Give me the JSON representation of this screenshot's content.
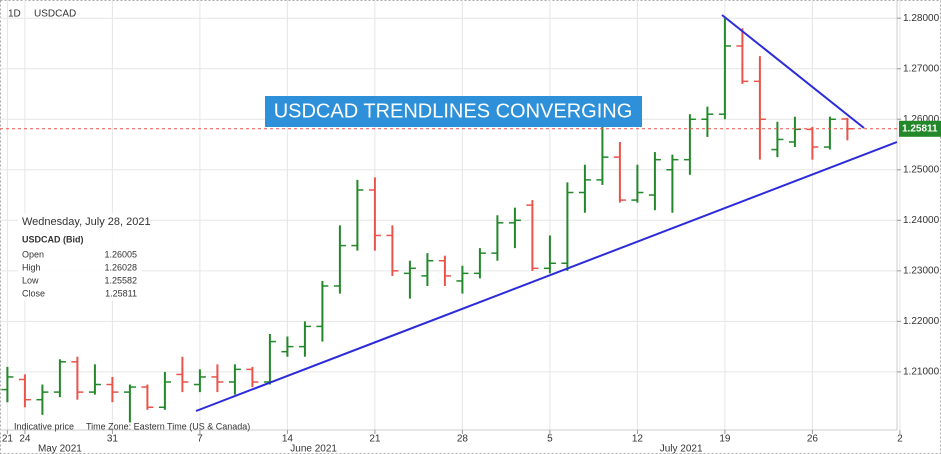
{
  "chart_data": {
    "type": "ohlc",
    "interval": "1D",
    "symbol": "USDCAD",
    "title": "USDCAD TRENDLINES CONVERGING",
    "name": "USDCAD (Bid)",
    "info_date": "Wednesday, July 28, 2021",
    "field_labels": [
      "Open",
      "High",
      "Low",
      "Close"
    ],
    "footer": [
      "Indicative price",
      "Time Zone: Eastern Time (US & Canada)"
    ],
    "up_color": "#22882a",
    "down_color": "#e8544a",
    "x": [
      "2021-05-21",
      "2021-05-24",
      "2021-05-25",
      "2021-05-26",
      "2021-05-27",
      "2021-05-28",
      "2021-05-31",
      "2021-06-01",
      "2021-06-02",
      "2021-06-03",
      "2021-06-04",
      "2021-06-07",
      "2021-06-08",
      "2021-06-09",
      "2021-06-10",
      "2021-06-11",
      "2021-06-14",
      "2021-06-15",
      "2021-06-16",
      "2021-06-17",
      "2021-06-18",
      "2021-06-21",
      "2021-06-22",
      "2021-06-23",
      "2021-06-24",
      "2021-06-25",
      "2021-06-28",
      "2021-06-29",
      "2021-06-30",
      "2021-07-01",
      "2021-07-02",
      "2021-07-05",
      "2021-07-06",
      "2021-07-07",
      "2021-07-08",
      "2021-07-09",
      "2021-07-12",
      "2021-07-13",
      "2021-07-14",
      "2021-07-15",
      "2021-07-16",
      "2021-07-19",
      "2021-07-20",
      "2021-07-21",
      "2021-07-22",
      "2021-07-23",
      "2021-07-26",
      "2021-07-27",
      "2021-07-28"
    ],
    "open": [
      1.2065,
      1.2085,
      1.2045,
      1.206,
      1.212,
      1.206,
      1.2075,
      1.206,
      1.207,
      1.203,
      1.2095,
      1.2075,
      1.209,
      1.208,
      1.2105,
      1.208,
      1.214,
      1.215,
      1.219,
      1.227,
      1.235,
      1.246,
      1.237,
      1.2295,
      1.229,
      1.232,
      1.228,
      1.2295,
      1.2335,
      1.2395,
      1.243,
      1.2305,
      1.2315,
      1.2455,
      1.248,
      1.2525,
      1.244,
      1.245,
      1.25,
      1.252,
      1.26,
      1.261,
      1.2745,
      1.2675,
      1.254,
      1.2555,
      1.258,
      1.2545,
      1.26005
    ],
    "high": [
      1.211,
      1.2095,
      1.2075,
      1.2125,
      1.213,
      1.2115,
      1.209,
      1.2075,
      1.2075,
      1.21,
      1.213,
      1.2105,
      1.2115,
      1.2115,
      1.211,
      1.2175,
      1.217,
      1.22,
      1.228,
      1.239,
      1.248,
      1.2485,
      1.239,
      1.232,
      1.2335,
      1.233,
      1.231,
      1.2345,
      1.241,
      1.2425,
      1.244,
      1.237,
      1.2475,
      1.251,
      1.2595,
      1.2555,
      1.251,
      1.2535,
      1.253,
      1.261,
      1.2625,
      1.28,
      1.278,
      1.2725,
      1.2595,
      1.2605,
      1.2585,
      1.2605,
      1.26028
    ],
    "low": [
      1.204,
      1.203,
      1.2015,
      1.205,
      1.2045,
      1.2055,
      1.204,
      1.2,
      1.2025,
      1.2025,
      1.206,
      1.206,
      1.206,
      1.2055,
      1.207,
      1.2075,
      1.213,
      1.213,
      1.216,
      1.2255,
      1.234,
      1.234,
      1.229,
      1.2245,
      1.227,
      1.227,
      1.2255,
      1.2285,
      1.232,
      1.2345,
      1.23,
      1.2295,
      1.23,
      1.2415,
      1.247,
      1.2435,
      1.2435,
      1.242,
      1.2415,
      1.249,
      1.2565,
      1.26,
      1.267,
      1.252,
      1.2525,
      1.2545,
      1.252,
      1.254,
      1.25582
    ],
    "close": [
      1.209,
      1.2045,
      1.206,
      1.212,
      1.206,
      1.2075,
      1.206,
      1.207,
      1.203,
      1.208,
      1.208,
      1.209,
      1.208,
      1.2105,
      1.208,
      1.216,
      1.215,
      1.219,
      1.227,
      1.235,
      1.246,
      1.237,
      1.23,
      1.2305,
      1.232,
      1.229,
      1.2295,
      1.2335,
      1.2395,
      1.24,
      1.2305,
      1.2315,
      1.2455,
      1.248,
      1.2525,
      1.244,
      1.2455,
      1.252,
      1.252,
      1.26,
      1.261,
      1.2745,
      1.2675,
      1.26,
      1.256,
      1.258,
      1.2545,
      1.26,
      1.25811
    ],
    "ylim": [
      1.1985,
      1.2836
    ],
    "yticks": [
      {
        "value": 1.21,
        "label": "1.21000"
      },
      {
        "value": 1.22,
        "label": "1.22000"
      },
      {
        "value": 1.23,
        "label": "1.23000"
      },
      {
        "value": 1.24,
        "label": "1.24000"
      },
      {
        "value": 1.25,
        "label": "1.25000"
      },
      {
        "value": 1.26,
        "label": "1.26000"
      },
      {
        "value": 1.27,
        "label": "1.27000"
      },
      {
        "value": 1.28,
        "label": "1.28000"
      }
    ],
    "xticks": [
      {
        "value": "2021-05-21",
        "label": "21"
      },
      {
        "value": "2021-05-24",
        "label": "24"
      },
      {
        "value": "2021-05-31",
        "label": "31"
      },
      {
        "value": "2021-06-07",
        "label": "7"
      },
      {
        "value": "2021-06-14",
        "label": "14"
      },
      {
        "value": "2021-06-21",
        "label": "21"
      },
      {
        "value": "2021-06-28",
        "label": "28"
      },
      {
        "value": "2021-07-05",
        "label": "5"
      },
      {
        "value": "2021-07-12",
        "label": "12"
      },
      {
        "value": "2021-07-19",
        "label": "19"
      },
      {
        "value": "2021-07-26",
        "label": "26"
      },
      {
        "value": "2021-08-02",
        "label": "2"
      }
    ],
    "month_labels": [
      {
        "value": "2021-05",
        "label": "May 2021"
      },
      {
        "value": "2021-06",
        "label": "June 2021"
      },
      {
        "value": "2021-07",
        "label": "July 2021"
      }
    ],
    "grid": true
  }
}
